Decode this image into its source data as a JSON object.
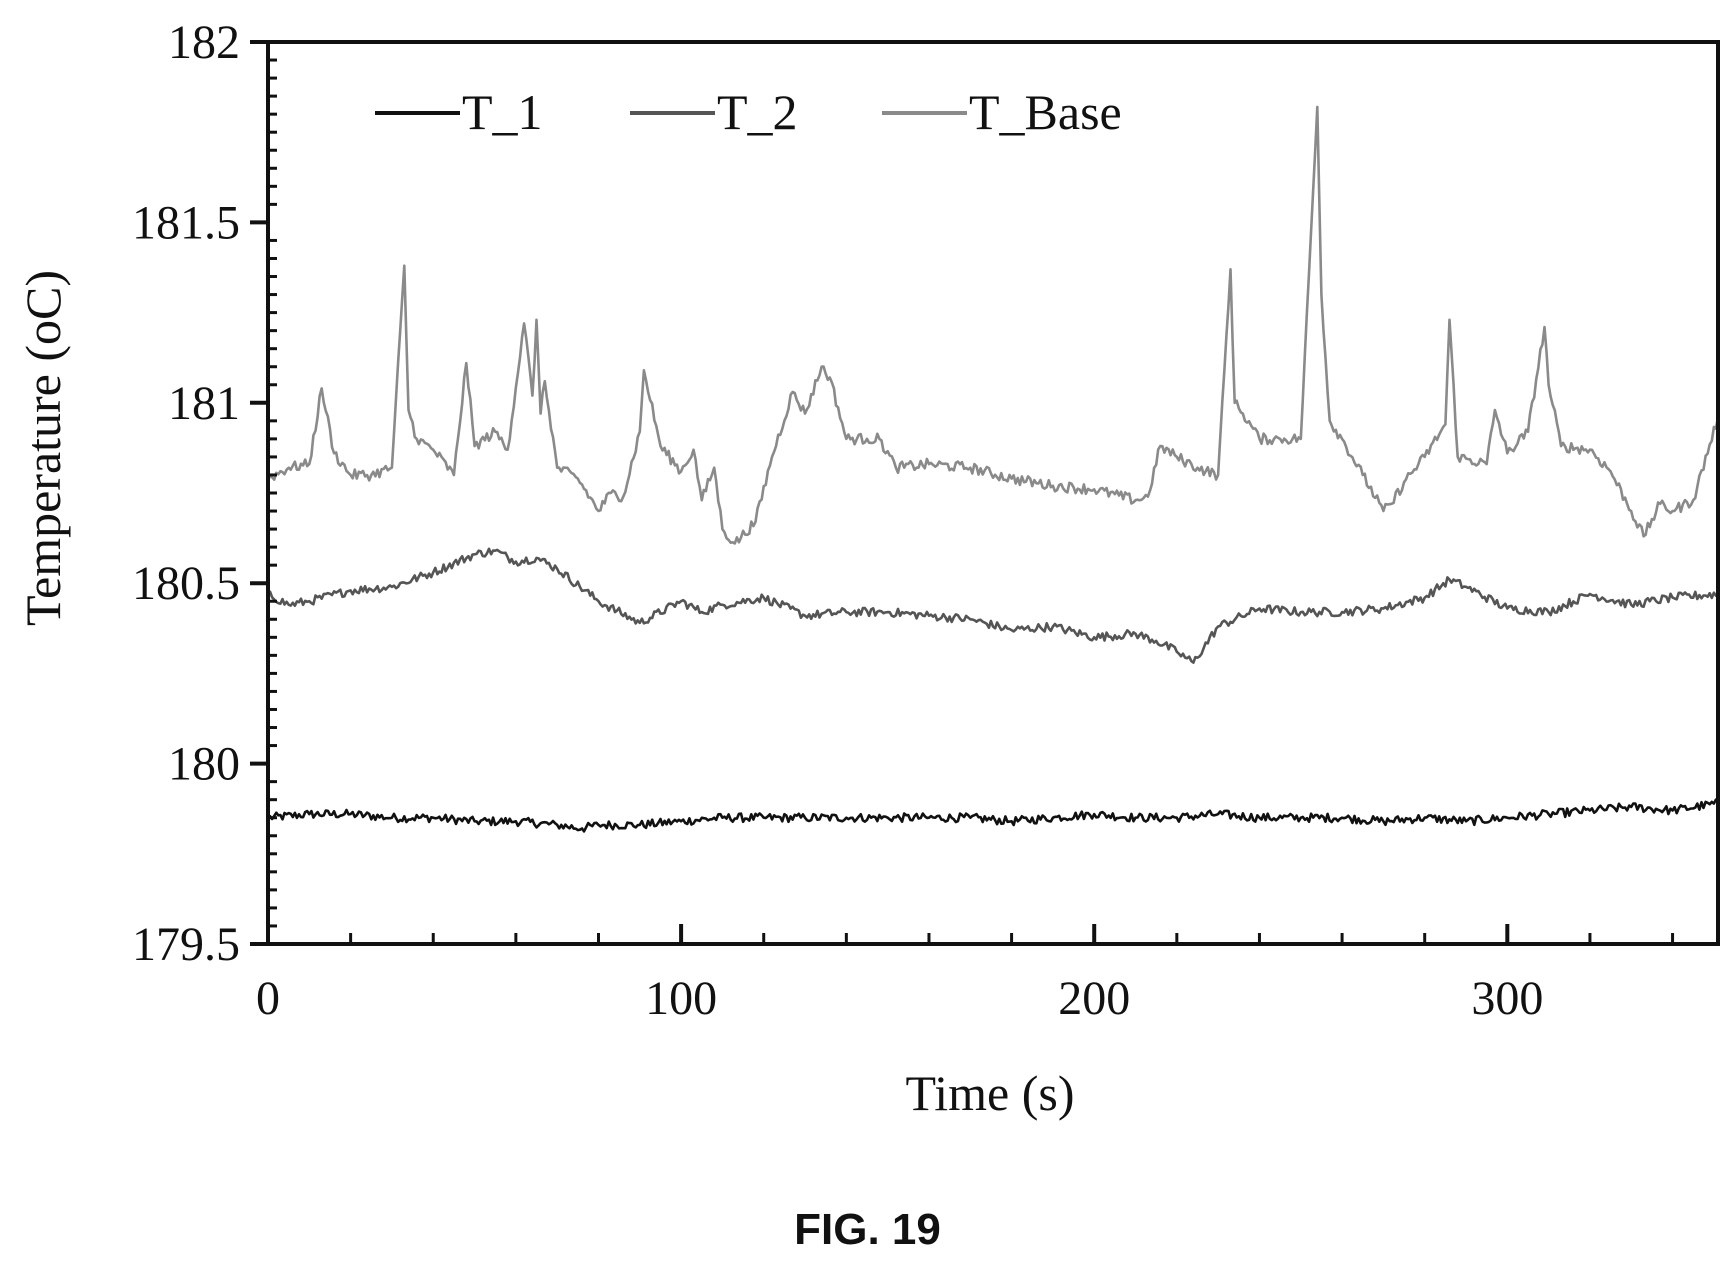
{
  "figure_label": "FIG. 19",
  "chart_data": {
    "type": "line",
    "title": "",
    "xlabel": "Time (s)",
    "ylabel": "Temperature (oC)",
    "xlim": [
      0,
      351
    ],
    "ylim": [
      179.5,
      182
    ],
    "x_ticks": [
      0,
      100,
      200,
      300
    ],
    "y_ticks": [
      179.5,
      180,
      180.5,
      181,
      181.5,
      182
    ],
    "y_tick_labels": [
      "179.5",
      "180",
      "180.5",
      "181",
      "181.5",
      "182"
    ],
    "grid": false,
    "legend_position": "top",
    "series": [
      {
        "name": "T_1",
        "color": "#111111",
        "x": [
          0,
          10,
          20,
          30,
          40,
          50,
          60,
          70,
          76,
          80,
          90,
          100,
          110,
          120,
          130,
          140,
          150,
          160,
          170,
          180,
          190,
          200,
          210,
          220,
          230,
          240,
          250,
          260,
          270,
          280,
          290,
          300,
          310,
          320,
          330,
          340,
          351
        ],
        "y": [
          179.85,
          179.86,
          179.86,
          179.85,
          179.85,
          179.84,
          179.84,
          179.83,
          179.82,
          179.83,
          179.83,
          179.84,
          179.85,
          179.85,
          179.85,
          179.85,
          179.85,
          179.85,
          179.85,
          179.84,
          179.85,
          179.86,
          179.85,
          179.85,
          179.86,
          179.85,
          179.85,
          179.85,
          179.84,
          179.85,
          179.84,
          179.85,
          179.86,
          179.87,
          179.88,
          179.87,
          179.89
        ]
      },
      {
        "name": "T_2",
        "color": "#555555",
        "x": [
          0,
          5,
          10,
          20,
          30,
          40,
          50,
          55,
          60,
          65,
          70,
          80,
          90,
          100,
          105,
          110,
          120,
          130,
          140,
          150,
          160,
          170,
          180,
          190,
          200,
          210,
          215,
          220,
          224,
          230,
          240,
          250,
          260,
          270,
          280,
          286,
          290,
          300,
          310,
          320,
          330,
          340,
          351
        ],
        "y": [
          180.47,
          180.44,
          180.45,
          180.48,
          180.49,
          180.53,
          180.58,
          180.59,
          180.56,
          180.57,
          180.54,
          180.45,
          180.39,
          180.45,
          180.42,
          180.44,
          180.46,
          180.41,
          180.42,
          180.42,
          180.41,
          180.4,
          180.37,
          180.38,
          180.35,
          180.36,
          180.34,
          180.31,
          180.28,
          180.38,
          180.43,
          180.42,
          180.42,
          180.43,
          180.46,
          180.51,
          180.49,
          180.43,
          180.42,
          180.47,
          180.44,
          180.46,
          180.47
        ]
      },
      {
        "name": "T_Base",
        "color": "#8a8a8a",
        "x": [
          0,
          5,
          10,
          13,
          16,
          20,
          25,
          30,
          33,
          34,
          36,
          40,
          45,
          48,
          50,
          55,
          58,
          62,
          64,
          65,
          66,
          67,
          70,
          75,
          80,
          83,
          86,
          90,
          91,
          95,
          100,
          103,
          105,
          108,
          110,
          113,
          118,
          122,
          127,
          130,
          134,
          136,
          140,
          145,
          148,
          152,
          160,
          170,
          180,
          190,
          200,
          210,
          213,
          216,
          220,
          225,
          230,
          233,
          234,
          236,
          240,
          245,
          250,
          254,
          255,
          257,
          260,
          265,
          270,
          272,
          275,
          280,
          285,
          286,
          288,
          295,
          297,
          300,
          305,
          309,
          310,
          313,
          320,
          325,
          330,
          333,
          337,
          340,
          345,
          351
        ],
        "y": [
          180.79,
          180.82,
          180.83,
          181.04,
          180.86,
          180.8,
          180.8,
          180.82,
          181.38,
          180.98,
          180.9,
          180.87,
          180.8,
          181.11,
          180.88,
          180.92,
          180.87,
          181.22,
          181.02,
          181.23,
          180.97,
          181.06,
          180.82,
          180.79,
          180.7,
          180.75,
          180.74,
          180.92,
          181.09,
          180.88,
          180.81,
          180.87,
          180.73,
          180.82,
          180.65,
          180.61,
          180.67,
          180.85,
          181.03,
          180.97,
          181.1,
          181.07,
          180.9,
          180.9,
          180.9,
          180.82,
          180.83,
          180.82,
          180.79,
          180.77,
          180.76,
          180.73,
          180.74,
          180.88,
          180.85,
          180.82,
          180.8,
          181.37,
          181.0,
          180.97,
          180.9,
          180.9,
          180.9,
          181.82,
          181.3,
          180.95,
          180.9,
          180.8,
          180.7,
          180.72,
          180.78,
          180.85,
          180.94,
          181.23,
          180.85,
          180.83,
          180.98,
          180.86,
          180.92,
          181.21,
          181.05,
          180.88,
          180.87,
          180.81,
          180.7,
          180.63,
          180.72,
          180.7,
          180.73,
          180.96
        ]
      }
    ]
  }
}
